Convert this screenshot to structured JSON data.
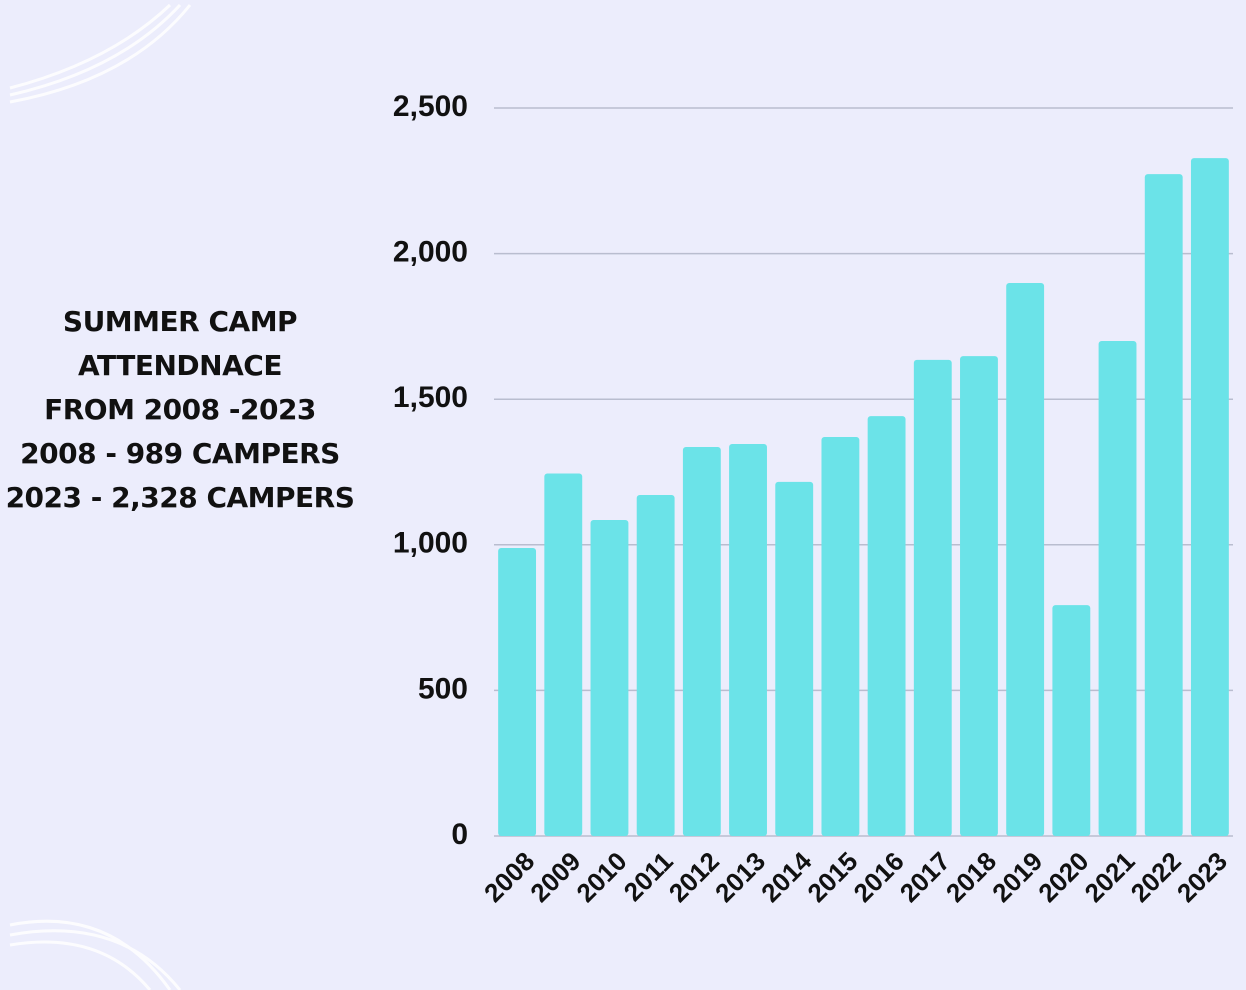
{
  "chart_data": {
    "type": "bar",
    "title": "SUMMER CAMP ATTENDNACE FROM 2008 -2023",
    "annotations": [
      "2008 - 989 CAMPERS",
      "2023 - 2,328 CAMPERS"
    ],
    "categories": [
      "2008",
      "2009",
      "2010",
      "2011",
      "2012",
      "2013",
      "2014",
      "2015",
      "2016",
      "2017",
      "2018",
      "2019",
      "2020",
      "2021",
      "2022",
      "2023"
    ],
    "values": [
      989,
      1245,
      1085,
      1171,
      1336,
      1346,
      1216,
      1370,
      1442,
      1635,
      1648,
      1899,
      793,
      1700,
      2273,
      2328
    ],
    "color": "#6be3e8",
    "ylim": [
      0,
      2500
    ],
    "yticks": [
      0,
      {
        "value": 500,
        "label": "500"
      },
      {
        "value": 1000,
        "label": "1,000"
      },
      {
        "value": 1500,
        "label": "1,500"
      },
      {
        "value": 2000,
        "label": "2,000"
      },
      {
        "value": 2500,
        "label": "2,500"
      }
    ],
    "grid": true
  }
}
